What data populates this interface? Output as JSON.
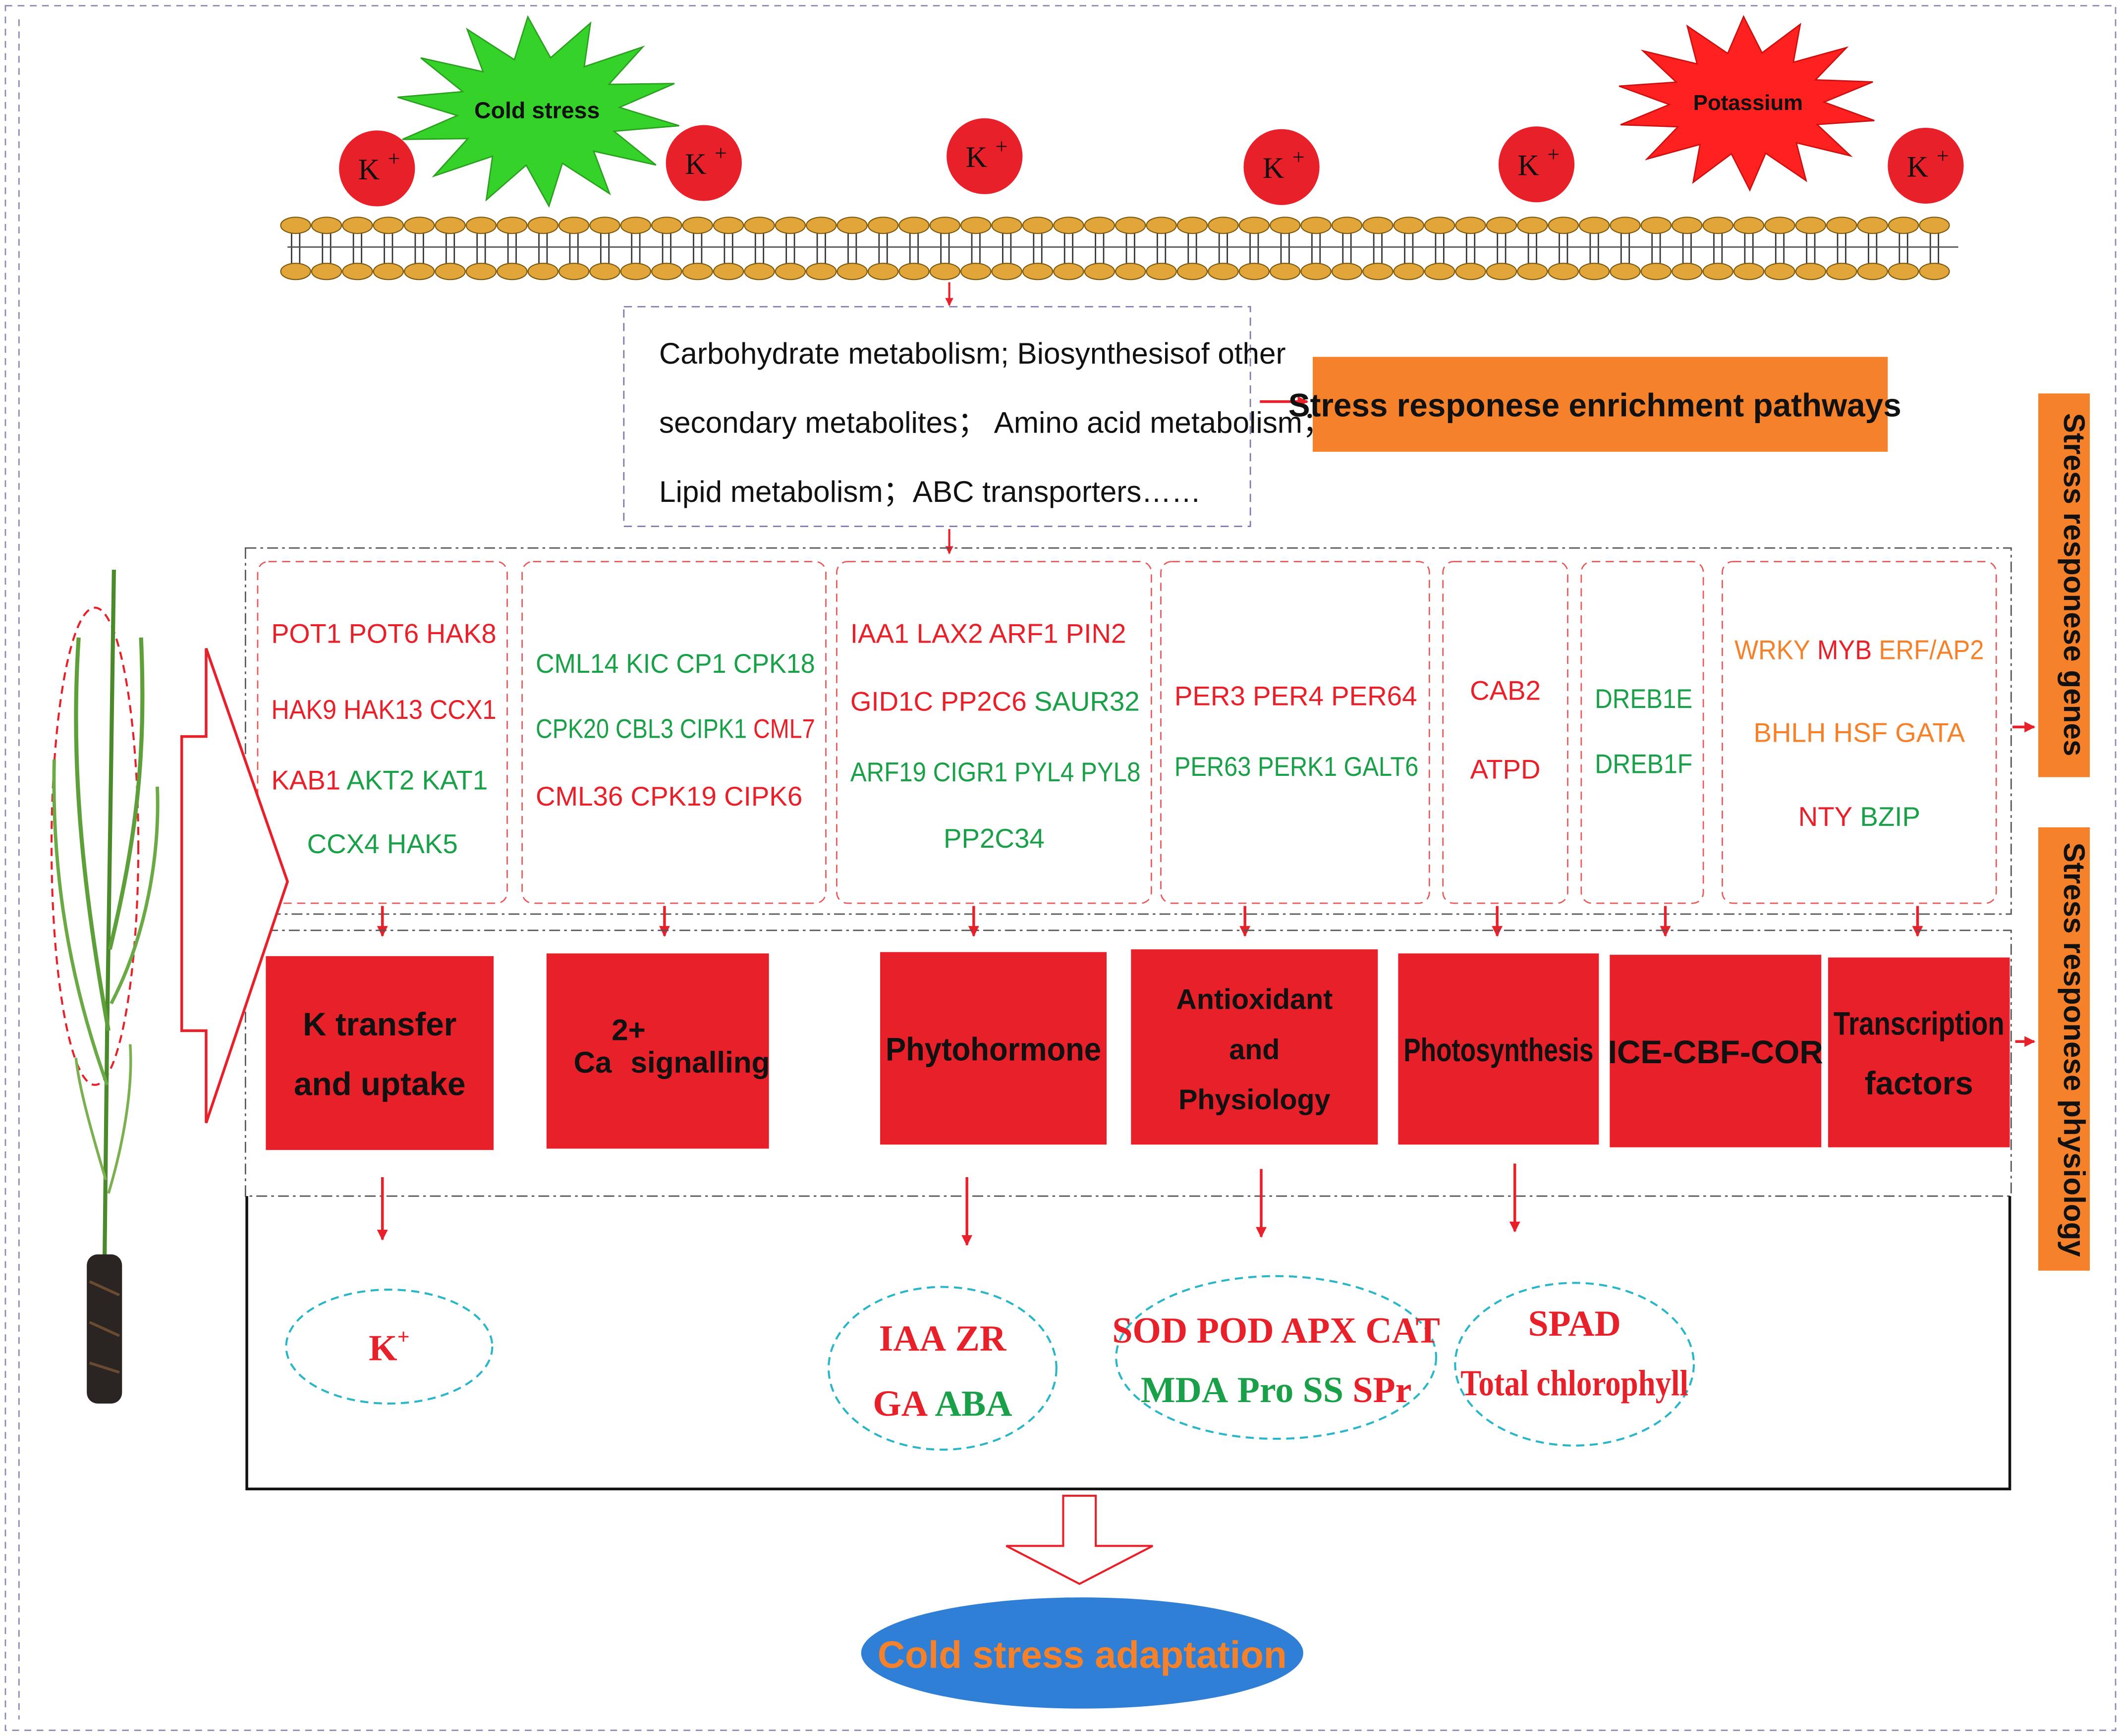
{
  "colors": {
    "red": "#e8202a",
    "green": "#1aa048",
    "orange": "#f5822a",
    "blue_ellipse": "#2f7fd6",
    "membrane_head": "#e2a53a",
    "star_green": "#35d22a",
    "star_red": "#ff2020",
    "teal_dash": "#29b6c8"
  },
  "stress": {
    "cold_label": "Cold stress",
    "potassium_label": "Potassium"
  },
  "ions": [
    {
      "label": "K",
      "sup": "+"
    },
    {
      "label": "K",
      "sup": "+"
    },
    {
      "label": "K",
      "sup": "+"
    },
    {
      "label": "K",
      "sup": "+"
    },
    {
      "label": "K",
      "sup": "+"
    },
    {
      "label": "K",
      "sup": "+"
    }
  ],
  "pathways": {
    "lines": [
      "Carbohydrate metabolism; Biosynthesisof other",
      "secondary metabolites； Amino acid metabolism；",
      "Lipid metabolism；ABC transporters……"
    ],
    "label": "Stress responese enrichment pathways"
  },
  "side_labels": {
    "genes": "Stress responese genes",
    "physiology": "Stress responese physiology"
  },
  "gene_groups": [
    {
      "lines": [
        [
          {
            "t": "POT1",
            "c": "red"
          },
          {
            "t": "POT6",
            "c": "red"
          },
          {
            "t": "HAK8",
            "c": "red"
          }
        ],
        [
          {
            "t": "HAK9",
            "c": "red"
          },
          {
            "t": "HAK13",
            "c": "red"
          },
          {
            "t": "CCX1",
            "c": "red"
          }
        ],
        [
          {
            "t": "KAB1",
            "c": "red"
          },
          {
            "t": "AKT2",
            "c": "green"
          },
          {
            "t": "KAT1",
            "c": "green"
          }
        ],
        [
          {
            "t": "CCX4",
            "c": "green"
          },
          {
            "t": "HAK5",
            "c": "green"
          }
        ]
      ]
    },
    {
      "lines": [
        [
          {
            "t": "CML14",
            "c": "green"
          },
          {
            "t": "KIC",
            "c": "green"
          },
          {
            "t": "CP1",
            "c": "green"
          },
          {
            "t": "CPK18",
            "c": "green"
          }
        ],
        [
          {
            "t": "CPK20",
            "c": "green"
          },
          {
            "t": "CBL3",
            "c": "green"
          },
          {
            "t": "CIPK1",
            "c": "green"
          },
          {
            "t": "CML7",
            "c": "red"
          }
        ],
        [
          {
            "t": "CML36",
            "c": "red"
          },
          {
            "t": "CPK19",
            "c": "red"
          },
          {
            "t": "CIPK6",
            "c": "red"
          }
        ]
      ]
    },
    {
      "lines": [
        [
          {
            "t": "IAA1",
            "c": "red"
          },
          {
            "t": "LAX2",
            "c": "red"
          },
          {
            "t": "ARF1",
            "c": "red"
          },
          {
            "t": "PIN2",
            "c": "red"
          }
        ],
        [
          {
            "t": "GID1C",
            "c": "red"
          },
          {
            "t": "PP2C6",
            "c": "red"
          },
          {
            "t": "SAUR32",
            "c": "green"
          }
        ],
        [
          {
            "t": "ARF19",
            "c": "green"
          },
          {
            "t": "CIGR1",
            "c": "green"
          },
          {
            "t": "PYL4",
            "c": "green"
          },
          {
            "t": "PYL8",
            "c": "green"
          }
        ],
        [
          {
            "t": "PP2C34",
            "c": "green"
          }
        ]
      ]
    },
    {
      "lines": [
        [
          {
            "t": "PER3",
            "c": "red"
          },
          {
            "t": "PER4",
            "c": "red"
          },
          {
            "t": "PER64",
            "c": "red"
          }
        ],
        [
          {
            "t": "PER63",
            "c": "green"
          },
          {
            "t": "PERK1",
            "c": "green"
          },
          {
            "t": "GALT6",
            "c": "green"
          }
        ]
      ]
    },
    {
      "lines": [
        [
          {
            "t": "CAB2",
            "c": "red"
          }
        ],
        [
          {
            "t": "ATPD",
            "c": "red"
          }
        ]
      ]
    },
    {
      "lines": [
        [
          {
            "t": "DREB1E",
            "c": "green"
          }
        ],
        [
          {
            "t": "DREB1F",
            "c": "green"
          }
        ]
      ]
    },
    {
      "lines": [
        [
          {
            "t": "WRKY",
            "c": "orange"
          },
          {
            "t": "MYB",
            "c": "red"
          },
          {
            "t": "ERF/AP2",
            "c": "orange"
          }
        ],
        [
          {
            "t": "BHLH",
            "c": "orange"
          },
          {
            "t": "HSF",
            "c": "orange"
          },
          {
            "t": "GATA",
            "c": "orange"
          }
        ],
        [
          {
            "t": "NTY",
            "c": "red"
          },
          {
            "t": "BZIP",
            "c": "green"
          }
        ]
      ]
    }
  ],
  "categories": [
    {
      "lines": [
        "K transfer",
        "and uptake"
      ]
    },
    {
      "lines": [
        "Ca",
        "signalling"
      ],
      "sup": "2+"
    },
    {
      "lines": [
        "Phytohormone"
      ]
    },
    {
      "lines": [
        "Antioxidant",
        "and",
        "Physiology"
      ]
    },
    {
      "lines": [
        "Photosynthesis"
      ]
    },
    {
      "lines": [
        "ICE-CBF-COR"
      ]
    },
    {
      "lines": [
        "Transcription",
        "factors"
      ]
    }
  ],
  "results": [
    {
      "lines": [
        [
          {
            "t": "K",
            "c": "red",
            "sup": "+"
          }
        ]
      ]
    },
    {
      "lines": [
        [
          {
            "t": "IAA",
            "c": "red"
          },
          {
            "t": "ZR",
            "c": "red"
          }
        ],
        [
          {
            "t": "GA",
            "c": "red"
          },
          {
            "t": "ABA",
            "c": "green"
          }
        ]
      ]
    },
    {
      "lines": [
        [
          {
            "t": "SOD",
            "c": "red"
          },
          {
            "t": "POD",
            "c": "red"
          },
          {
            "t": "APX",
            "c": "red"
          },
          {
            "t": "CAT",
            "c": "red"
          }
        ],
        [
          {
            "t": "MDA",
            "c": "green"
          },
          {
            "t": "Pro",
            "c": "green"
          },
          {
            "t": "SS",
            "c": "green"
          },
          {
            "t": "SPr",
            "c": "red"
          }
        ]
      ]
    },
    {
      "lines": [
        [
          {
            "t": "SPAD",
            "c": "red"
          }
        ],
        [
          {
            "t": "Total chlorophyll",
            "c": "red"
          }
        ]
      ]
    }
  ],
  "outcome": "Cold stress adaptation"
}
